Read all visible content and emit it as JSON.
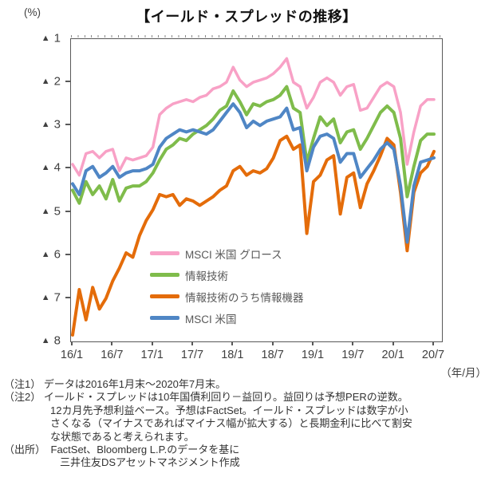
{
  "header": {
    "title": "【イールド・スプレッドの推移】",
    "unit_label": "(%)"
  },
  "axis": {
    "y_prefix": "▲",
    "y_ticks": [
      "1",
      "2",
      "3",
      "4",
      "5",
      "6",
      "7",
      "8"
    ],
    "x_ticks": [
      "16/1",
      "16/7",
      "17/1",
      "17/7",
      "18/1",
      "18/7",
      "19/1",
      "19/7",
      "20/1",
      "20/7"
    ],
    "x_unit": "（年/月）"
  },
  "notes": [
    {
      "indent": 0,
      "text": "（注1） データは2016年1月末～2020年7月末。"
    },
    {
      "indent": 0,
      "text": "（注2） イールド・スプレッドは10年国債利回り－益回り。益回りは予想PERの逆数。"
    },
    {
      "indent": 58,
      "text": "12カ月先予想利益ベース。予想はFactSet。イールド・スプレッドは数字が小"
    },
    {
      "indent": 58,
      "text": "さくなる（マイナスであればマイナス幅が拡大する）と長期金利に比べて割安"
    },
    {
      "indent": 58,
      "text": "な状態であると考えられます。"
    },
    {
      "indent": 0,
      "text": "（出所）　FactSet、Bloomberg L.P.のデータを基に"
    },
    {
      "indent": 70,
      "text": "三井住友DSアセットマネジメント作成"
    }
  ],
  "chart_data": {
    "type": "line",
    "title": "【イールド・スプレッドの推移】",
    "ylabel": "(%)",
    "xlabel": "（年/月）",
    "ylim": [
      -8,
      -1
    ],
    "y_tick_note": "▲ denotes negative percent; axis runs ▲1 (top) to ▲8 (bottom)",
    "grid": false,
    "legend_position": "inside-left-lower",
    "x_interval": "monthly",
    "categories": [
      "16/1",
      "16/2",
      "16/3",
      "16/4",
      "16/5",
      "16/6",
      "16/7",
      "16/8",
      "16/9",
      "16/10",
      "16/11",
      "16/12",
      "17/1",
      "17/2",
      "17/3",
      "17/4",
      "17/5",
      "17/6",
      "17/7",
      "17/8",
      "17/9",
      "17/10",
      "17/11",
      "17/12",
      "18/1",
      "18/2",
      "18/3",
      "18/4",
      "18/5",
      "18/6",
      "18/7",
      "18/8",
      "18/9",
      "18/10",
      "18/11",
      "18/12",
      "19/1",
      "19/2",
      "19/3",
      "19/4",
      "19/5",
      "19/6",
      "19/7",
      "19/8",
      "19/9",
      "19/10",
      "19/11",
      "19/12",
      "20/1",
      "20/2",
      "20/3",
      "20/4",
      "20/5",
      "20/6",
      "20/7"
    ],
    "series": [
      {
        "id": "msci-us-growth",
        "name": "MSCI 米国 グロース",
        "color": "#F8A1C6",
        "stroke_width": 3.5,
        "values": [
          -3.9,
          -4.15,
          -3.65,
          -3.6,
          -3.75,
          -3.6,
          -3.55,
          -4.05,
          -3.75,
          -3.8,
          -3.75,
          -3.7,
          -3.5,
          -2.75,
          -2.6,
          -2.5,
          -2.45,
          -2.4,
          -2.45,
          -2.35,
          -2.3,
          -2.15,
          -2.1,
          -2.0,
          -1.65,
          -1.95,
          -2.1,
          -2.0,
          -1.95,
          -1.9,
          -1.8,
          -1.65,
          -1.45,
          -2.0,
          -2.1,
          -2.6,
          -2.35,
          -2.0,
          -1.9,
          -2.0,
          -2.3,
          -2.1,
          -2.05,
          -2.65,
          -2.6,
          -2.35,
          -2.1,
          -2.0,
          -2.1,
          -2.7,
          -3.9,
          -3.15,
          -2.55,
          -2.4,
          -2.4
        ]
      },
      {
        "id": "info-tech",
        "name": "情報技術",
        "color": "#7FBC4B",
        "stroke_width": 4,
        "values": [
          -4.5,
          -4.8,
          -4.3,
          -4.6,
          -4.4,
          -4.7,
          -4.25,
          -4.75,
          -4.45,
          -4.4,
          -4.4,
          -4.3,
          -4.1,
          -3.8,
          -3.55,
          -3.45,
          -3.3,
          -3.35,
          -3.2,
          -3.1,
          -3.0,
          -2.85,
          -2.65,
          -2.55,
          -2.2,
          -2.45,
          -2.75,
          -2.5,
          -2.55,
          -2.45,
          -2.4,
          -2.3,
          -2.1,
          -2.6,
          -2.7,
          -3.85,
          -3.3,
          -2.8,
          -3.0,
          -2.85,
          -3.4,
          -3.15,
          -3.1,
          -3.55,
          -3.3,
          -3.0,
          -2.7,
          -2.55,
          -2.7,
          -3.3,
          -4.65,
          -3.95,
          -3.35,
          -3.2,
          -3.2
        ]
      },
      {
        "id": "info-equipment",
        "name": "情報技術のうち情報機器",
        "color": "#E46C0A",
        "stroke_width": 4,
        "values": [
          -7.85,
          -6.8,
          -7.5,
          -6.75,
          -7.25,
          -7.0,
          -6.6,
          -6.3,
          -5.95,
          -6.05,
          -5.55,
          -5.2,
          -4.95,
          -4.6,
          -4.65,
          -4.6,
          -4.85,
          -4.7,
          -4.75,
          -4.85,
          -4.75,
          -4.65,
          -4.5,
          -4.4,
          -4.05,
          -3.95,
          -4.15,
          -4.05,
          -4.1,
          -4.0,
          -3.75,
          -3.35,
          -3.25,
          -3.55,
          -3.45,
          -5.5,
          -4.3,
          -4.15,
          -3.8,
          -3.7,
          -5.05,
          -4.2,
          -4.1,
          -4.9,
          -4.35,
          -4.05,
          -3.7,
          -3.3,
          -3.45,
          -4.55,
          -5.9,
          -4.55,
          -4.1,
          -3.95,
          -3.6
        ]
      },
      {
        "id": "msci-us",
        "name": "MSCI 米国",
        "color": "#4F86C5",
        "stroke_width": 4,
        "values": [
          -4.35,
          -4.6,
          -4.05,
          -3.95,
          -4.2,
          -4.1,
          -3.95,
          -4.2,
          -4.1,
          -4.05,
          -4.05,
          -4.0,
          -3.9,
          -3.5,
          -3.3,
          -3.2,
          -3.1,
          -3.15,
          -3.1,
          -3.15,
          -3.2,
          -3.1,
          -2.9,
          -2.7,
          -2.5,
          -2.7,
          -3.05,
          -2.9,
          -3.0,
          -2.9,
          -2.85,
          -2.8,
          -2.6,
          -3.1,
          -3.05,
          -4.05,
          -3.5,
          -3.25,
          -3.2,
          -3.3,
          -3.85,
          -3.65,
          -3.65,
          -4.2,
          -4.0,
          -3.8,
          -3.55,
          -3.4,
          -3.55,
          -4.4,
          -5.7,
          -4.4,
          -3.85,
          -3.8,
          -3.75
        ]
      }
    ]
  },
  "colors": {
    "axis": "#595959",
    "axis_text": "#404040",
    "legend_text": "#595959",
    "note_text": "#333333",
    "title_text": "#111111"
  }
}
